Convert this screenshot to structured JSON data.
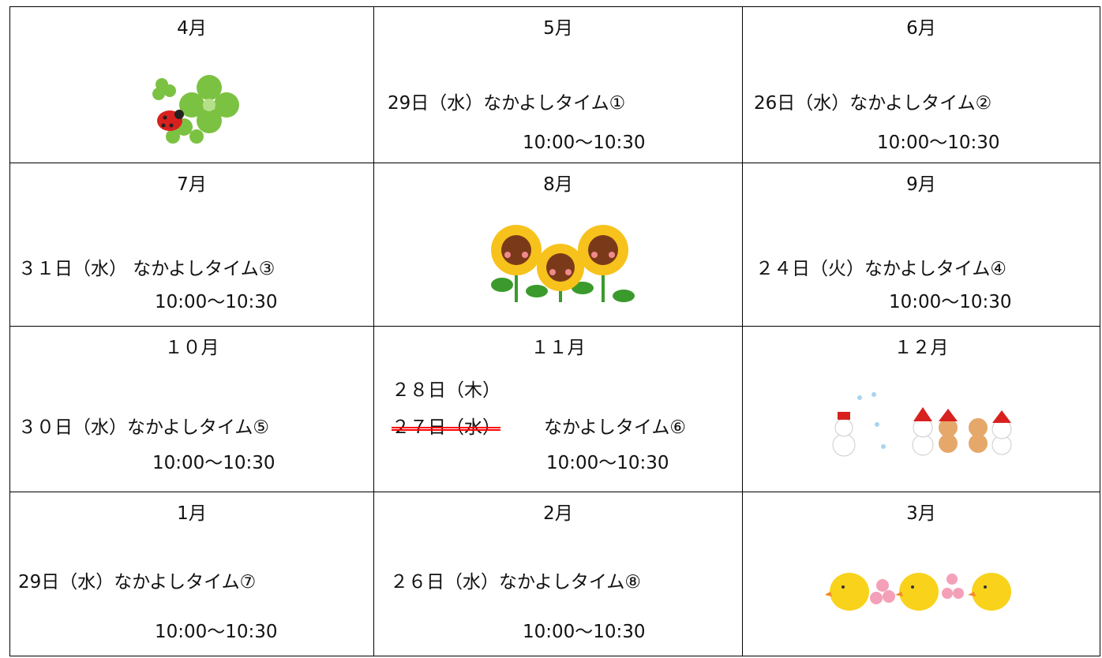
{
  "table": {
    "rows": [
      [
        {
          "month": "4月"
        },
        {
          "month": "5月",
          "date": "29日（水）なかよしタイム①",
          "time": "10:00～10:30"
        },
        {
          "month": "6月",
          "date": "26日（水）なかよしタイム②",
          "time": "10:00～10:30"
        }
      ],
      [
        {
          "month": "7月",
          "date": "３１日（水） なかよしタイム③",
          "time": "10:00～10:30"
        },
        {
          "month": "8月"
        },
        {
          "month": "9月",
          "date": "２４日（火）なかよしタイム④",
          "time": "10:00～10:30"
        }
      ],
      [
        {
          "month": "１０月",
          "date": "３０日（水）なかよしタイム⑤",
          "time": "10:00～10:30"
        },
        {
          "month": "１１月",
          "new_date": "２８日（木）",
          "struck_date": "２７日（水）",
          "event": "なかよしタイム⑥",
          "time": "10:00～10:30"
        },
        {
          "month": "１２月"
        }
      ],
      [
        {
          "month": "1月",
          "date": "29日（水）なかよしタイム⑦",
          "time": "10:00～10:30"
        },
        {
          "month": "2月",
          "date": "２６日（水）なかよしタイム⑧",
          "time": "10:00～10:30"
        },
        {
          "month": "3月"
        }
      ]
    ]
  }
}
